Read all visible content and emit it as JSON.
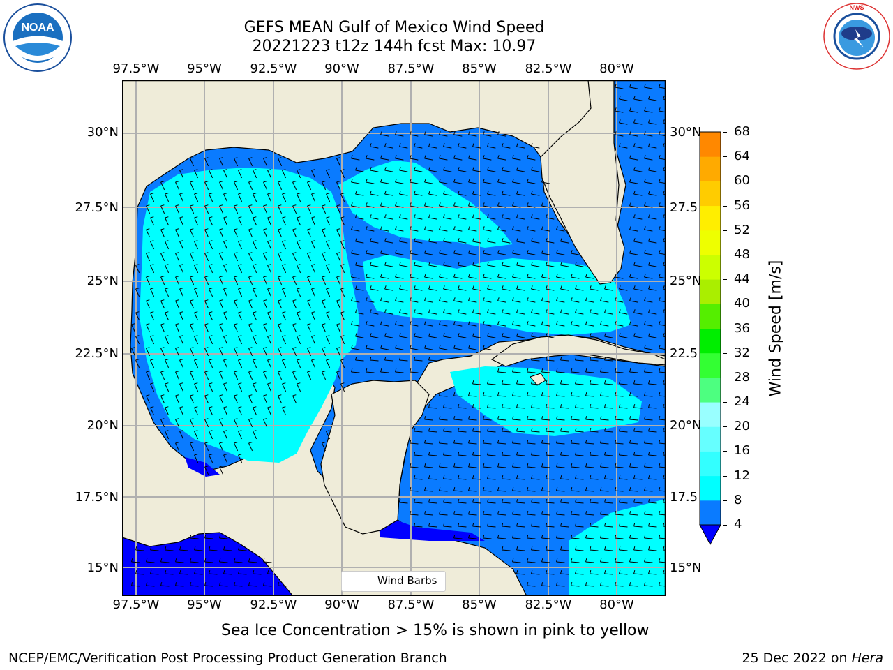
{
  "title": {
    "line1": "GEFS MEAN Gulf of Mexico Wind Speed",
    "line2": "20221223 t12z 144h fcst   Max: 10.97"
  },
  "logos": {
    "noaa_text": "NOAA",
    "noaa_ring": "NATIONAL OCEANIC AND ATMOSPHERIC ADMINISTRATION · U.S. DEPARTMENT OF COMMERCE",
    "nws_ring": "NATIONAL WEATHER SERVICE"
  },
  "lon_labels": [
    "97.5°W",
    "95°W",
    "92.5°W",
    "90°W",
    "87.5°W",
    "85°W",
    "82.5°W",
    "80°W"
  ],
  "lat_labels_left": [
    "30°N",
    "27.5°N",
    "25°N",
    "22.5°N",
    "20°N",
    "17.5°N",
    "15°N"
  ],
  "lat_labels_right": [
    "30°N",
    "27.5",
    "25°N",
    "22.5",
    "20°N",
    "17.5",
    "15°N"
  ],
  "legend": {
    "label": "Wind Barbs"
  },
  "colorbar": {
    "label": "Wind Speed [m/s]",
    "ticks": [
      "4",
      "8",
      "12",
      "16",
      "20",
      "24",
      "28",
      "32",
      "36",
      "40",
      "44",
      "48",
      "52",
      "56",
      "60",
      "64",
      "68"
    ],
    "colors": [
      "#0a7bff",
      "#00ffff",
      "#33ffff",
      "#66ffff",
      "#99ffff",
      "#4dff80",
      "#33ff33",
      "#00ee00",
      "#55ee00",
      "#aaee00",
      "#ccff00",
      "#eeff00",
      "#ffee00",
      "#ffcc00",
      "#ffaa00",
      "#ff8800",
      "#ff6600",
      "#ff4400",
      "#ff2200",
      "#ff0000"
    ],
    "under_color": "#0000ff"
  },
  "colors": {
    "land": "#efecd9",
    "blue": "#0a7bff",
    "cyan": "#00ffff",
    "deep": "#0000ff",
    "grid": "#b0b0b0"
  },
  "caption": "Sea Ice Concentration > 15% is shown in pink to yellow",
  "footer": {
    "left": "NCEP/EMC/Verification Post Processing Product Generation Branch",
    "date": "25 Dec 2022 on ",
    "host": "Hera"
  }
}
